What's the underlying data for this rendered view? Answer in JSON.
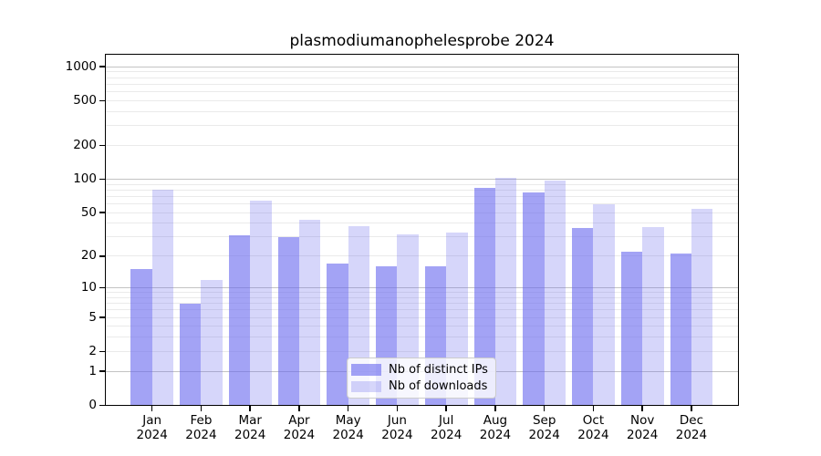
{
  "chart_data": {
    "type": "bar",
    "title": "plasmodiumanophelesprobe 2024",
    "year_label": "2024",
    "months": [
      "Jan",
      "Feb",
      "Mar",
      "Apr",
      "May",
      "Jun",
      "Jul",
      "Aug",
      "Sep",
      "Oct",
      "Nov",
      "Dec"
    ],
    "series": [
      {
        "name": "Nb of distinct IPs",
        "color": "rgba(102,102,238,0.60)",
        "values": [
          15,
          7,
          31,
          30,
          17,
          16,
          16,
          84,
          76,
          36,
          22,
          21
        ]
      },
      {
        "name": "Nb of downloads",
        "color": "rgba(102,102,238,0.27)",
        "values": [
          80,
          12,
          64,
          43,
          38,
          32,
          33,
          103,
          97,
          60,
          37,
          54
        ]
      }
    ],
    "yscale": "log1p",
    "ylim": [
      0,
      1300
    ],
    "y_ticks": [
      1000,
      500,
      200,
      100,
      50,
      20,
      10,
      5,
      2,
      1,
      0
    ],
    "major_gridlines": [
      1,
      10,
      100,
      1000
    ],
    "minor_gridlines": [
      2,
      3,
      4,
      5,
      6,
      7,
      8,
      9,
      20,
      30,
      40,
      50,
      60,
      70,
      80,
      90,
      200,
      300,
      400,
      500,
      600,
      700,
      800,
      900
    ],
    "grid_major_color": "#c3c3c3",
    "grid_minor_color": "#eaeaea",
    "axis_color": "#000000",
    "legend_position": "bottom-center"
  }
}
